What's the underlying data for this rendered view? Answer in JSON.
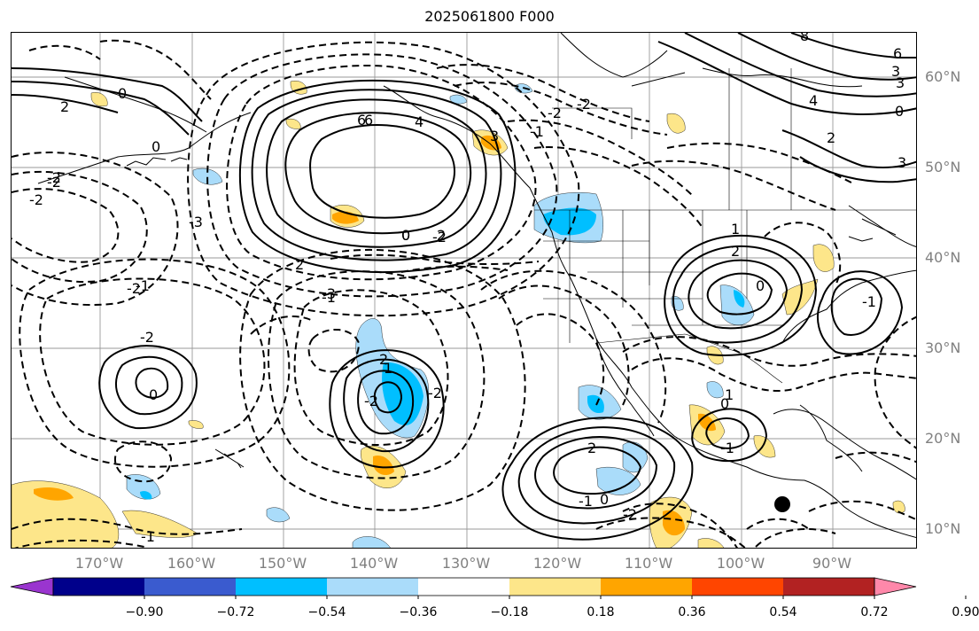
{
  "title": "2025061800 F000",
  "lat_labels": [
    "60°N",
    "50°N",
    "40°N",
    "30°N",
    "20°N",
    "10°N"
  ],
  "lon_labels": [
    "170°W",
    "160°W",
    "150°W",
    "140°W",
    "130°W",
    "120°W",
    "110°W",
    "100°W",
    "90°W"
  ],
  "colorbar": {
    "tick_labels": [
      "−0.90",
      "−0.72",
      "−0.54",
      "−0.36",
      "−0.18",
      "0.18",
      "0.36",
      "0.54",
      "0.72",
      "0.90"
    ],
    "colors": [
      "#9a35cf",
      "#00008b",
      "#3a5bcf",
      "#00bfff",
      "#aadcfa",
      "#ffffff",
      "#fde68a",
      "#ffa500",
      "#ff4500",
      "#b22222",
      "#ff88aa"
    ]
  },
  "contour_labels": [
    "6",
    "4",
    "0",
    "2",
    "-2",
    "-2",
    "-1",
    "2",
    "0",
    "6",
    "4",
    "-2",
    "-2",
    "-1",
    "3",
    "-2",
    "0",
    "-1",
    "-2",
    "-2",
    "-2",
    "-3",
    "1",
    "2",
    "-2",
    "0",
    "1",
    "0",
    "2",
    "-1",
    "0",
    "1",
    "2",
    "-1",
    "0",
    "-2",
    "-1",
    "6",
    "8",
    "6",
    "3",
    "4",
    "3",
    "2",
    "3",
    "0",
    "2",
    "0",
    "-2",
    "-3",
    "-1"
  ],
  "contour_colors": {
    "line": "#000000",
    "land": "#000000"
  },
  "marker": "black-dot"
}
